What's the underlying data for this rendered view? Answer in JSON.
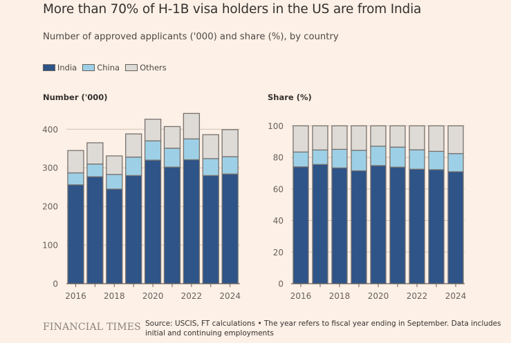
{
  "header": {
    "title": "More than 70% of H-1B visa holders in the US are from India",
    "subtitle": "Number of approved applicants ('000) and share (%), by country"
  },
  "legend": [
    {
      "label": "India",
      "color": "#2e5488"
    },
    {
      "label": "China",
      "color": "#9dd0e6"
    },
    {
      "label": "Others",
      "color": "#dedad6"
    }
  ],
  "colors": {
    "background": "#fdf0e6",
    "gridline": "#cfc3b8",
    "axis": "#66605c",
    "bar_border": "#77716d"
  },
  "chart_data": [
    {
      "type": "bar",
      "stacked": true,
      "title": "Number ('000)",
      "xlabel": "",
      "ylabel": "Number ('000)",
      "categories": [
        "2016",
        "2017",
        "2018",
        "2019",
        "2020",
        "2021",
        "2022",
        "2023",
        "2024"
      ],
      "x_tick_labels": [
        "2016",
        "2018",
        "2020",
        "2022",
        "2024"
      ],
      "y_ticks": [
        0,
        100,
        200,
        300,
        400
      ],
      "ylim": [
        0,
        440
      ],
      "grid": true,
      "series": [
        {
          "name": "India",
          "values": [
            256,
            277,
            245,
            280,
            320,
            302,
            321,
            280,
            284
          ]
        },
        {
          "name": "China",
          "values": [
            31,
            33,
            38,
            48,
            50,
            49,
            54,
            44,
            45
          ]
        },
        {
          "name": "Others",
          "values": [
            58,
            55,
            48,
            60,
            56,
            56,
            66,
            62,
            70
          ]
        }
      ]
    },
    {
      "type": "bar",
      "stacked": true,
      "title": "Share (%)",
      "xlabel": "",
      "ylabel": "Share (%)",
      "categories": [
        "2016",
        "2017",
        "2018",
        "2019",
        "2020",
        "2021",
        "2022",
        "2023",
        "2024"
      ],
      "x_tick_labels": [
        "2016",
        "2018",
        "2020",
        "2022",
        "2024"
      ],
      "y_ticks": [
        0,
        20,
        40,
        60,
        80,
        100
      ],
      "ylim": [
        0,
        100
      ],
      "grid": true,
      "series": [
        {
          "name": "India",
          "values": [
            74.0,
            75.5,
            73.3,
            71.5,
            74.8,
            73.8,
            72.5,
            72.2,
            70.9
          ]
        },
        {
          "name": "China",
          "values": [
            9.4,
            9.2,
            11.8,
            13.0,
            12.3,
            12.7,
            12.3,
            11.6,
            11.5
          ]
        },
        {
          "name": "Others",
          "values": [
            16.6,
            15.3,
            14.9,
            15.5,
            12.9,
            13.5,
            15.2,
            16.2,
            17.6
          ]
        }
      ]
    }
  ],
  "footer": {
    "logo": "FINANCIAL TIMES",
    "note": "Source: USCIS, FT calculations • The year refers to fiscal year ending in September. Data includes initial and continuing employments"
  }
}
